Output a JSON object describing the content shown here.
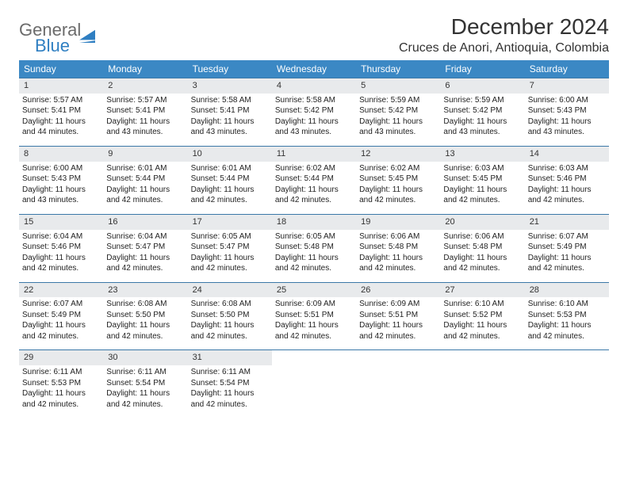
{
  "brand": {
    "line1": "General",
    "line2": "Blue",
    "icon_color": "#2f7fc2"
  },
  "title": "December 2024",
  "location": "Cruces de Anori, Antioquia, Colombia",
  "colors": {
    "header_bg": "#3b88c4",
    "header_text": "#ffffff",
    "row_border": "#3b78a8",
    "daynum_bg": "#e8eaec",
    "text": "#333333"
  },
  "day_headers": [
    "Sunday",
    "Monday",
    "Tuesday",
    "Wednesday",
    "Thursday",
    "Friday",
    "Saturday"
  ],
  "weeks": [
    [
      {
        "n": "1",
        "sunrise": "Sunrise: 5:57 AM",
        "sunset": "Sunset: 5:41 PM",
        "daylight": "Daylight: 11 hours and 44 minutes."
      },
      {
        "n": "2",
        "sunrise": "Sunrise: 5:57 AM",
        "sunset": "Sunset: 5:41 PM",
        "daylight": "Daylight: 11 hours and 43 minutes."
      },
      {
        "n": "3",
        "sunrise": "Sunrise: 5:58 AM",
        "sunset": "Sunset: 5:41 PM",
        "daylight": "Daylight: 11 hours and 43 minutes."
      },
      {
        "n": "4",
        "sunrise": "Sunrise: 5:58 AM",
        "sunset": "Sunset: 5:42 PM",
        "daylight": "Daylight: 11 hours and 43 minutes."
      },
      {
        "n": "5",
        "sunrise": "Sunrise: 5:59 AM",
        "sunset": "Sunset: 5:42 PM",
        "daylight": "Daylight: 11 hours and 43 minutes."
      },
      {
        "n": "6",
        "sunrise": "Sunrise: 5:59 AM",
        "sunset": "Sunset: 5:42 PM",
        "daylight": "Daylight: 11 hours and 43 minutes."
      },
      {
        "n": "7",
        "sunrise": "Sunrise: 6:00 AM",
        "sunset": "Sunset: 5:43 PM",
        "daylight": "Daylight: 11 hours and 43 minutes."
      }
    ],
    [
      {
        "n": "8",
        "sunrise": "Sunrise: 6:00 AM",
        "sunset": "Sunset: 5:43 PM",
        "daylight": "Daylight: 11 hours and 43 minutes."
      },
      {
        "n": "9",
        "sunrise": "Sunrise: 6:01 AM",
        "sunset": "Sunset: 5:44 PM",
        "daylight": "Daylight: 11 hours and 42 minutes."
      },
      {
        "n": "10",
        "sunrise": "Sunrise: 6:01 AM",
        "sunset": "Sunset: 5:44 PM",
        "daylight": "Daylight: 11 hours and 42 minutes."
      },
      {
        "n": "11",
        "sunrise": "Sunrise: 6:02 AM",
        "sunset": "Sunset: 5:44 PM",
        "daylight": "Daylight: 11 hours and 42 minutes."
      },
      {
        "n": "12",
        "sunrise": "Sunrise: 6:02 AM",
        "sunset": "Sunset: 5:45 PM",
        "daylight": "Daylight: 11 hours and 42 minutes."
      },
      {
        "n": "13",
        "sunrise": "Sunrise: 6:03 AM",
        "sunset": "Sunset: 5:45 PM",
        "daylight": "Daylight: 11 hours and 42 minutes."
      },
      {
        "n": "14",
        "sunrise": "Sunrise: 6:03 AM",
        "sunset": "Sunset: 5:46 PM",
        "daylight": "Daylight: 11 hours and 42 minutes."
      }
    ],
    [
      {
        "n": "15",
        "sunrise": "Sunrise: 6:04 AM",
        "sunset": "Sunset: 5:46 PM",
        "daylight": "Daylight: 11 hours and 42 minutes."
      },
      {
        "n": "16",
        "sunrise": "Sunrise: 6:04 AM",
        "sunset": "Sunset: 5:47 PM",
        "daylight": "Daylight: 11 hours and 42 minutes."
      },
      {
        "n": "17",
        "sunrise": "Sunrise: 6:05 AM",
        "sunset": "Sunset: 5:47 PM",
        "daylight": "Daylight: 11 hours and 42 minutes."
      },
      {
        "n": "18",
        "sunrise": "Sunrise: 6:05 AM",
        "sunset": "Sunset: 5:48 PM",
        "daylight": "Daylight: 11 hours and 42 minutes."
      },
      {
        "n": "19",
        "sunrise": "Sunrise: 6:06 AM",
        "sunset": "Sunset: 5:48 PM",
        "daylight": "Daylight: 11 hours and 42 minutes."
      },
      {
        "n": "20",
        "sunrise": "Sunrise: 6:06 AM",
        "sunset": "Sunset: 5:48 PM",
        "daylight": "Daylight: 11 hours and 42 minutes."
      },
      {
        "n": "21",
        "sunrise": "Sunrise: 6:07 AM",
        "sunset": "Sunset: 5:49 PM",
        "daylight": "Daylight: 11 hours and 42 minutes."
      }
    ],
    [
      {
        "n": "22",
        "sunrise": "Sunrise: 6:07 AM",
        "sunset": "Sunset: 5:49 PM",
        "daylight": "Daylight: 11 hours and 42 minutes."
      },
      {
        "n": "23",
        "sunrise": "Sunrise: 6:08 AM",
        "sunset": "Sunset: 5:50 PM",
        "daylight": "Daylight: 11 hours and 42 minutes."
      },
      {
        "n": "24",
        "sunrise": "Sunrise: 6:08 AM",
        "sunset": "Sunset: 5:50 PM",
        "daylight": "Daylight: 11 hours and 42 minutes."
      },
      {
        "n": "25",
        "sunrise": "Sunrise: 6:09 AM",
        "sunset": "Sunset: 5:51 PM",
        "daylight": "Daylight: 11 hours and 42 minutes."
      },
      {
        "n": "26",
        "sunrise": "Sunrise: 6:09 AM",
        "sunset": "Sunset: 5:51 PM",
        "daylight": "Daylight: 11 hours and 42 minutes."
      },
      {
        "n": "27",
        "sunrise": "Sunrise: 6:10 AM",
        "sunset": "Sunset: 5:52 PM",
        "daylight": "Daylight: 11 hours and 42 minutes."
      },
      {
        "n": "28",
        "sunrise": "Sunrise: 6:10 AM",
        "sunset": "Sunset: 5:53 PM",
        "daylight": "Daylight: 11 hours and 42 minutes."
      }
    ],
    [
      {
        "n": "29",
        "sunrise": "Sunrise: 6:11 AM",
        "sunset": "Sunset: 5:53 PM",
        "daylight": "Daylight: 11 hours and 42 minutes."
      },
      {
        "n": "30",
        "sunrise": "Sunrise: 6:11 AM",
        "sunset": "Sunset: 5:54 PM",
        "daylight": "Daylight: 11 hours and 42 minutes."
      },
      {
        "n": "31",
        "sunrise": "Sunrise: 6:11 AM",
        "sunset": "Sunset: 5:54 PM",
        "daylight": "Daylight: 11 hours and 42 minutes."
      },
      null,
      null,
      null,
      null
    ]
  ]
}
